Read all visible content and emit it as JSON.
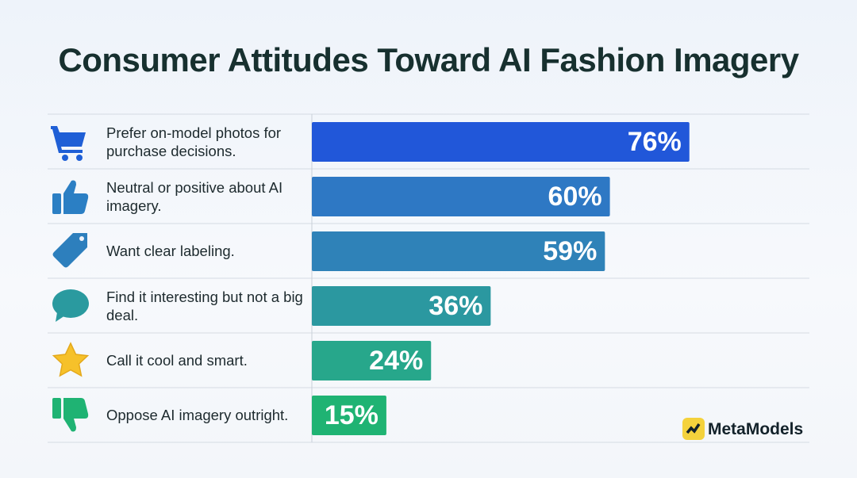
{
  "chart_data": {
    "type": "bar",
    "orientation": "horizontal",
    "title": "Consumer Attitudes Toward AI Fashion Imagery",
    "categories": [
      "Prefer on-model photos for purchase decisions.",
      "Neutral or positive about AI imagery.",
      "Want clear labeling.",
      "Find it interesting but not a big deal.",
      "Call it cool and smart.",
      "Oppose AI imagery outright."
    ],
    "values": [
      76,
      60,
      59,
      36,
      24,
      15
    ],
    "value_labels": [
      "76%",
      "60%",
      "59%",
      "36%",
      "24%",
      "15%"
    ],
    "colors": [
      "#2157d9",
      "#2e78c4",
      "#2f82b8",
      "#2b98a0",
      "#27a78b",
      "#1fb373"
    ]
  },
  "brand": "MetaModels"
}
